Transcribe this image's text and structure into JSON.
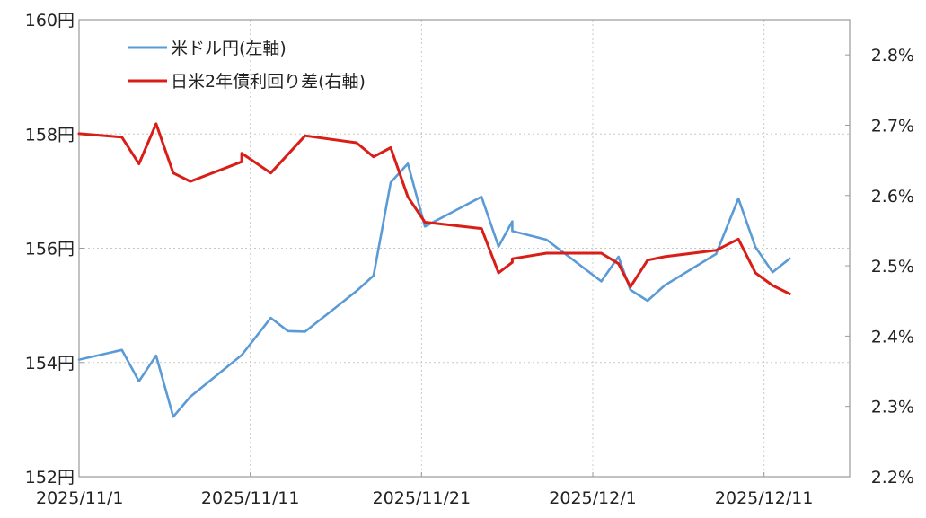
{
  "chart_data": {
    "type": "line",
    "title": "",
    "grid": true,
    "legend_position": "top-left",
    "x_axis": {
      "type": "date",
      "range": [
        "2025-11-01",
        "2025-12-16"
      ],
      "ticks": [
        {
          "date": "2025-11-01",
          "label": "2025/11/1"
        },
        {
          "date": "2025-11-11",
          "label": "2025/11/11"
        },
        {
          "date": "2025-11-21",
          "label": "2025/11/21"
        },
        {
          "date": "2025-12-01",
          "label": "2025/12/1"
        },
        {
          "date": "2025-12-11",
          "label": "2025/12/11"
        }
      ]
    },
    "y_left": {
      "range": [
        152,
        160
      ],
      "ticks": [
        {
          "value": 152,
          "label": "152円"
        },
        {
          "value": 154,
          "label": "154円"
        },
        {
          "value": 156,
          "label": "156円"
        },
        {
          "value": 158,
          "label": "158円"
        },
        {
          "value": 160,
          "label": "160円"
        }
      ]
    },
    "y_right": {
      "range": [
        2.2,
        2.85
      ],
      "ticks": [
        {
          "value": 2.2,
          "label": "2.2%"
        },
        {
          "value": 2.3,
          "label": "2.3%"
        },
        {
          "value": 2.4,
          "label": "2.4%"
        },
        {
          "value": 2.5,
          "label": "2.5%"
        },
        {
          "value": 2.6,
          "label": "2.6%"
        },
        {
          "value": 2.7,
          "label": "2.7%"
        },
        {
          "value": 2.8,
          "label": "2.8%"
        }
      ]
    },
    "series": [
      {
        "name": "米ドル円(左軸)",
        "axis": "left",
        "color": "#5b9bd5",
        "points": [
          [
            "2025-11-01",
            154.05
          ],
          [
            "2025-11-03.5",
            154.22
          ],
          [
            "2025-11-04.5",
            153.67
          ],
          [
            "2025-11-05.5",
            154.12
          ],
          [
            "2025-11-06.5",
            153.05
          ],
          [
            "2025-11-07.5",
            153.4
          ],
          [
            "2025-11-10.5",
            154.13
          ],
          [
            "2025-11-12.2",
            154.78
          ],
          [
            "2025-11-13.2",
            154.55
          ],
          [
            "2025-11-14.2",
            154.54
          ],
          [
            "2025-11-17.2",
            155.25
          ],
          [
            "2025-11-18.2",
            155.52
          ],
          [
            "2025-11-19.2",
            157.15
          ],
          [
            "2025-11-20.2",
            157.48
          ],
          [
            "2025-11-21.2",
            156.38
          ],
          [
            "2025-11-24.5",
            156.9
          ],
          [
            "2025-11-25.5",
            156.03
          ],
          [
            "2025-11-26.3",
            156.47
          ],
          [
            "2025-11-26.3",
            156.3
          ],
          [
            "2025-11-28.3",
            156.15
          ],
          [
            "2025-12-01.5",
            155.42
          ],
          [
            "2025-12-02.5",
            155.85
          ],
          [
            "2025-12-03.2",
            155.27
          ],
          [
            "2025-12-04.2",
            155.08
          ],
          [
            "2025-12-05.2",
            155.35
          ],
          [
            "2025-12-08.2",
            155.9
          ],
          [
            "2025-12-09.5",
            156.87
          ],
          [
            "2025-12-10.5",
            156.02
          ],
          [
            "2025-12-11.5",
            155.58
          ],
          [
            "2025-12-12.5",
            155.82
          ]
        ]
      },
      {
        "name": "日米2年債利回り差(右軸)",
        "axis": "right",
        "color": "#d91e18",
        "points": [
          [
            "2025-11-01",
            2.688
          ],
          [
            "2025-11-03.5",
            2.683
          ],
          [
            "2025-11-04.5",
            2.645
          ],
          [
            "2025-11-05.5",
            2.702
          ],
          [
            "2025-11-06.5",
            2.632
          ],
          [
            "2025-11-07.5",
            2.62
          ],
          [
            "2025-11-10.5",
            2.648
          ],
          [
            "2025-11-10.5",
            2.66
          ],
          [
            "2025-11-12.2",
            2.632
          ],
          [
            "2025-11-14.2",
            2.685
          ],
          [
            "2025-11-17.2",
            2.675
          ],
          [
            "2025-11-18.2",
            2.655
          ],
          [
            "2025-11-19.2",
            2.668
          ],
          [
            "2025-11-20.2",
            2.598
          ],
          [
            "2025-11-21.2",
            2.562
          ],
          [
            "2025-11-24.5",
            2.553
          ],
          [
            "2025-11-25.5",
            2.49
          ],
          [
            "2025-11-26.3",
            2.505
          ],
          [
            "2025-11-26.3",
            2.51
          ],
          [
            "2025-11-28.3",
            2.518
          ],
          [
            "2025-12-01.5",
            2.518
          ],
          [
            "2025-12-02.5",
            2.503
          ],
          [
            "2025-12-03.2",
            2.47
          ],
          [
            "2025-12-04.2",
            2.508
          ],
          [
            "2025-12-05.2",
            2.513
          ],
          [
            "2025-12-08.2",
            2.522
          ],
          [
            "2025-12-09.5",
            2.538
          ],
          [
            "2025-12-10.5",
            2.49
          ],
          [
            "2025-12-11.5",
            2.472
          ],
          [
            "2025-12-12.5",
            2.46
          ]
        ]
      }
    ]
  }
}
